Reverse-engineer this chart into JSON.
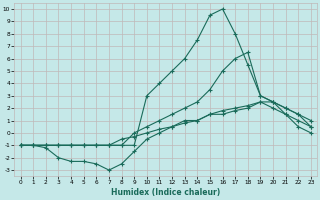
{
  "xlabel": "Humidex (Indice chaleur)",
  "bg_color": "#c5e8e8",
  "grid_color": "#c0b8b8",
  "line_color": "#1a6b5a",
  "xlim": [
    -0.5,
    23.5
  ],
  "ylim": [
    -3.5,
    10.5
  ],
  "xticks": [
    0,
    1,
    2,
    3,
    4,
    5,
    6,
    7,
    8,
    9,
    10,
    11,
    12,
    13,
    14,
    15,
    16,
    17,
    18,
    19,
    20,
    21,
    22,
    23
  ],
  "yticks": [
    -3,
    -2,
    -1,
    0,
    1,
    2,
    3,
    4,
    5,
    6,
    7,
    8,
    9,
    10
  ],
  "line_peak_x": [
    0,
    1,
    2,
    3,
    4,
    5,
    6,
    7,
    8,
    9,
    10,
    11,
    12,
    13,
    14,
    15,
    16,
    17,
    18,
    19,
    20,
    21,
    22,
    23
  ],
  "line_peak_y": [
    -1,
    -1,
    -1,
    -1,
    -1,
    -1,
    -1,
    -1,
    -1,
    -1,
    3,
    4,
    5,
    6,
    7.5,
    9.5,
    10,
    8,
    5.5,
    3,
    2.5,
    1.5,
    0.5,
    0
  ],
  "line_mid_x": [
    0,
    1,
    2,
    3,
    4,
    5,
    6,
    7,
    8,
    9,
    10,
    11,
    12,
    13,
    14,
    15,
    16,
    17,
    18,
    19,
    20,
    21,
    22,
    23
  ],
  "line_mid_y": [
    -1,
    -1,
    -1,
    -1,
    -1,
    -1,
    -1,
    -1,
    -1,
    0,
    0.5,
    1,
    1.5,
    2,
    2.5,
    3.5,
    5,
    6,
    6.5,
    3,
    2.5,
    2,
    1.5,
    0.5
  ],
  "line_grad_x": [
    0,
    1,
    2,
    3,
    4,
    5,
    6,
    7,
    8,
    9,
    10,
    11,
    12,
    13,
    14,
    15,
    16,
    17,
    18,
    19,
    20,
    21,
    22,
    23
  ],
  "line_grad_y": [
    -1,
    -1,
    -1,
    -1,
    -1,
    -1,
    -1,
    -1,
    -0.5,
    -0.3,
    0,
    0.3,
    0.5,
    0.8,
    1,
    1.5,
    1.8,
    2,
    2.2,
    2.5,
    2.5,
    2,
    1.5,
    1
  ],
  "line_low_x": [
    0,
    1,
    2,
    3,
    4,
    5,
    6,
    7,
    8,
    9,
    10,
    11,
    12,
    13,
    14,
    15,
    16,
    17,
    18,
    19,
    20,
    21,
    22,
    23
  ],
  "line_low_y": [
    -1,
    -1,
    -1.2,
    -2,
    -2.3,
    -2.3,
    -2.5,
    -3,
    -2.5,
    -1.5,
    -0.5,
    0,
    0.5,
    1,
    1,
    1.5,
    1.5,
    1.8,
    2,
    2.5,
    2,
    1.5,
    1,
    0.5
  ]
}
